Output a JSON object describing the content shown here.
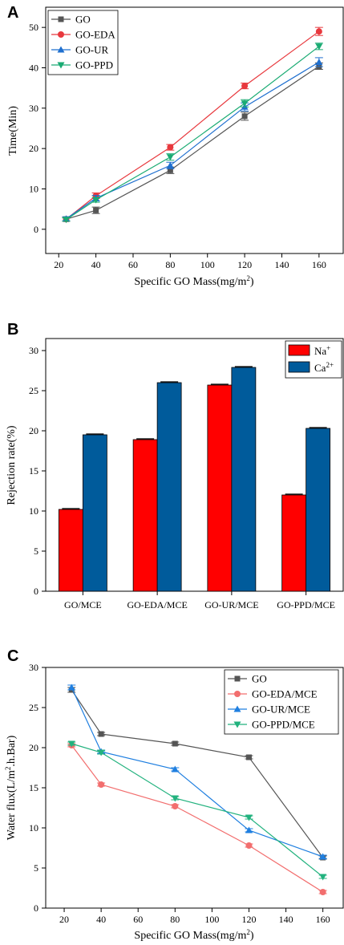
{
  "chart_data": [
    {
      "panel": "A",
      "type": "line",
      "title": "",
      "xlabel": "Specific GO Mass(mg/m",
      "xlabel_sup": "2",
      "xlabel_end": ")",
      "ylabel": "Time(Min)",
      "x_ticks": [
        20,
        40,
        60,
        80,
        100,
        120,
        140,
        160
      ],
      "y_ticks": [
        0,
        10,
        20,
        30,
        40,
        50
      ],
      "xlim": [
        13,
        173
      ],
      "ylim": [
        -6,
        55
      ],
      "legend_position": "top-left",
      "x": [
        24,
        40,
        80,
        120,
        160
      ],
      "series": [
        {
          "name": "GO",
          "color": "#555555",
          "marker": "square",
          "values": [
            2.5,
            4.7,
            14.6,
            28.0,
            40.4
          ],
          "errors": [
            0.5,
            0.8,
            0.8,
            1.0,
            0.8
          ]
        },
        {
          "name": "GO-EDA",
          "color": "#e8383d",
          "marker": "circle",
          "values": [
            2.5,
            8.3,
            20.3,
            35.5,
            49.0
          ],
          "errors": [
            0.5,
            0.7,
            0.7,
            0.7,
            1.0
          ]
        },
        {
          "name": "GO-UR",
          "color": "#1f6fcf",
          "marker": "triangle-up",
          "values": [
            2.6,
            7.7,
            15.8,
            30.3,
            41.4
          ],
          "errors": [
            0.5,
            0.7,
            0.8,
            1.0,
            1.1
          ]
        },
        {
          "name": "GO-PPD",
          "color": "#1aab73",
          "marker": "triangle-down",
          "values": [
            2.4,
            7.3,
            17.9,
            31.2,
            45.3
          ],
          "errors": [
            0.4,
            0.6,
            0.8,
            0.9,
            0.8
          ]
        }
      ]
    },
    {
      "panel": "B",
      "type": "bar",
      "title": "",
      "xlabel": "",
      "ylabel": "Rejection rate(%)",
      "y_ticks": [
        0,
        5,
        10,
        15,
        20,
        25,
        30
      ],
      "ylim": [
        0,
        31.5
      ],
      "legend_position": "top-right",
      "categories": [
        "GO/MCE",
        "GO-EDA/MCE",
        "GO-UR/MCE",
        "GO-PPD/MCE"
      ],
      "series": [
        {
          "name": "Na",
          "sup": "+",
          "color": "#ff0000",
          "values": [
            10.2,
            18.9,
            25.7,
            12.0
          ],
          "errors": [
            0.1,
            0.1,
            0.1,
            0.1
          ]
        },
        {
          "name": "Ca",
          "sup": "2+",
          "color": "#005b9b",
          "values": [
            19.5,
            26.0,
            27.9,
            20.3
          ],
          "errors": [
            0.1,
            0.1,
            0.1,
            0.1
          ]
        }
      ]
    },
    {
      "panel": "C",
      "type": "line",
      "title": "",
      "xlabel": "Specific GO Mass(mg/m",
      "xlabel_sup": "2",
      "xlabel_end": ")",
      "ylabel": "Water flux(L/m",
      "ylabel_sup": "2",
      "ylabel_end": ".h.Bar)",
      "x_ticks": [
        20,
        40,
        60,
        80,
        100,
        120,
        140,
        160
      ],
      "y_ticks": [
        0,
        5,
        10,
        15,
        20,
        25,
        30
      ],
      "xlim": [
        10,
        171
      ],
      "ylim": [
        0,
        30
      ],
      "legend_position": "top-right",
      "x": [
        24,
        40,
        80,
        120,
        160
      ],
      "series": [
        {
          "name": "GO",
          "color": "#555555",
          "marker": "square",
          "values": [
            27.2,
            21.7,
            20.5,
            18.8,
            6.3
          ],
          "errors": [
            0.3,
            0.2,
            0.2,
            0.2,
            0.2
          ]
        },
        {
          "name": "GO-EDA/MCE",
          "color": "#f26e6e",
          "marker": "circle",
          "values": [
            20.3,
            15.4,
            12.7,
            7.8,
            2.0
          ],
          "errors": [
            0.2,
            0.2,
            0.2,
            0.2,
            0.2
          ]
        },
        {
          "name": "GO-UR/MCE",
          "color": "#1f7fe0",
          "marker": "triangle-up",
          "values": [
            27.5,
            19.5,
            17.3,
            9.7,
            6.4
          ],
          "errors": [
            0.3,
            0.2,
            0.2,
            0.2,
            0.2
          ]
        },
        {
          "name": "GO-PPD/MCE",
          "color": "#22b27e",
          "marker": "triangle-down",
          "values": [
            20.5,
            19.4,
            13.7,
            11.3,
            3.9
          ],
          "errors": [
            0.2,
            0.2,
            0.2,
            0.2,
            0.2
          ]
        }
      ]
    }
  ],
  "panels": {
    "a": {
      "letter": "A"
    },
    "b": {
      "letter": "B"
    },
    "c": {
      "letter": "C"
    }
  }
}
